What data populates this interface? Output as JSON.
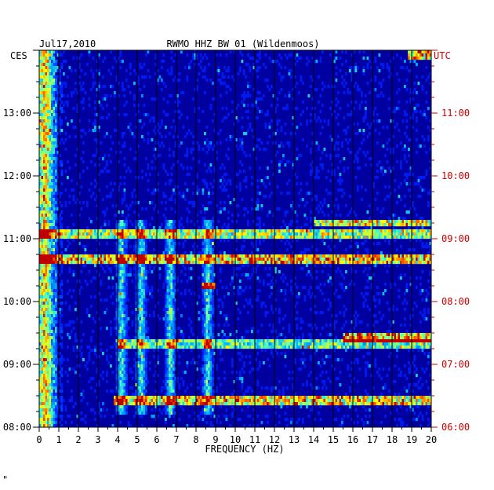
{
  "chart_data": {
    "type": "heatmap",
    "title_date": "Jul17,2010",
    "title_station": "RWMO HHZ BW 01 (Wildenmoos)",
    "left_tz_label": "CES",
    "right_tz_label": "UTC",
    "xlabel": "FREQUENCY (HZ)",
    "xlim": [
      0,
      20
    ],
    "x_ticks": [
      "0",
      "1",
      "2",
      "3",
      "4",
      "5",
      "6",
      "7",
      "8",
      "9",
      "10",
      "11",
      "12",
      "13",
      "14",
      "15",
      "16",
      "17",
      "18",
      "19",
      "20"
    ],
    "y_left_range_hours": [
      8,
      14
    ],
    "y_left_ticks": [
      "08:00",
      "09:00",
      "10:00",
      "11:00",
      "12:00",
      "13:00"
    ],
    "y_right_ticks": [
      "06:00",
      "07:00",
      "08:00",
      "09:00",
      "10:00",
      "11:00"
    ],
    "background_color": "#0000a0",
    "label_color_left": "#000000",
    "label_color_right": "#cc0000",
    "energy_bands_hz": [
      0.3,
      0.6,
      4.2,
      5.2,
      6.7,
      8.6
    ],
    "strong_events": [
      {
        "time": "08:25",
        "freq_from": 3.8,
        "freq_to": 20,
        "level": 0.75
      },
      {
        "time": "09:20",
        "freq_from": 4.0,
        "freq_to": 20,
        "level": 0.55
      },
      {
        "time": "09:25",
        "freq_from": 15.5,
        "freq_to": 20,
        "level": 0.85
      },
      {
        "time": "10:15",
        "freq_from": 8.3,
        "freq_to": 9.0,
        "level": 0.95
      },
      {
        "time": "10:40",
        "freq_from": 0,
        "freq_to": 20,
        "level": 0.8
      },
      {
        "time": "11:05",
        "freq_from": 0,
        "freq_to": 20,
        "level": 0.65
      },
      {
        "time": "11:15",
        "freq_from": 14,
        "freq_to": 20,
        "level": 0.7
      },
      {
        "time": "13:55",
        "freq_from": 18.8,
        "freq_to": 20,
        "level": 0.85
      }
    ],
    "footer_mark": "\""
  }
}
